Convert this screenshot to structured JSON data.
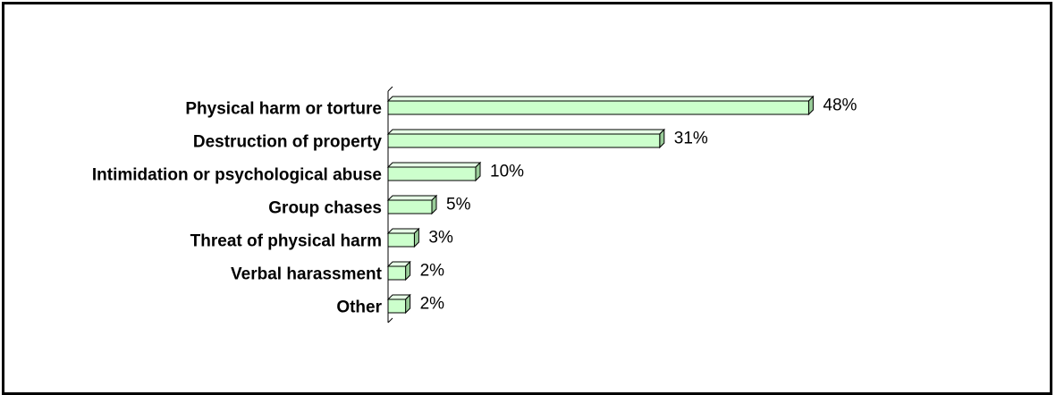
{
  "chart_data": {
    "type": "bar",
    "orientation": "horizontal",
    "title": "",
    "xlabel": "",
    "ylabel": "",
    "categories": [
      "Physical harm or torture",
      "Destruction of property",
      "Intimidation or psychological abuse",
      "Group chases",
      "Threat of physical harm",
      "Verbal harassment",
      "Other"
    ],
    "values": [
      48,
      31,
      10,
      5,
      3,
      2,
      2
    ],
    "value_labels": [
      "48%",
      "31%",
      "10%",
      "5%",
      "3%",
      "2%",
      "2%"
    ],
    "value_unit": "%",
    "xlim": [
      0,
      48
    ],
    "grid": false,
    "legend": "none",
    "bar_style": "3d",
    "colors": {
      "bar_front": "#ccffcc",
      "bar_top": "#e6ffe6",
      "bar_side": "#99cc99",
      "outline": "#000000"
    }
  }
}
